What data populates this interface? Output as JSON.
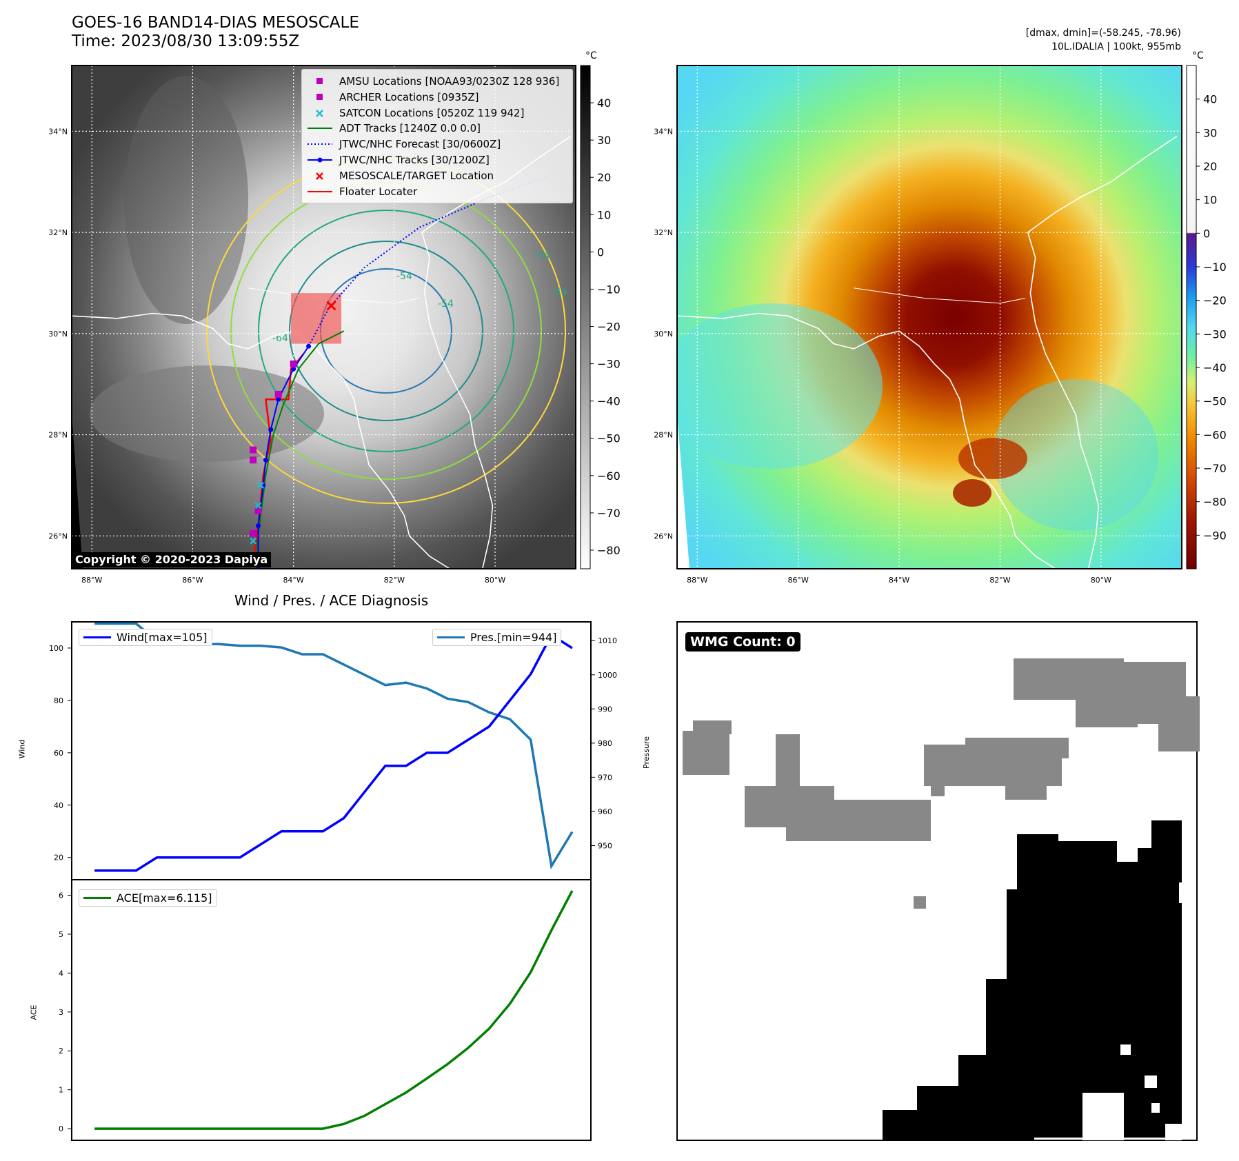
{
  "header": {
    "title_line1": "GOES-16 BAND14-DIAS MESOSCALE",
    "title_line2": "Time: 2023/08/30 13:09:55Z",
    "dmax_line": "[dmax, dmin]=(-58.245, -78.96)",
    "storm_line": "10L.IDALIA | 100kt, 955mb"
  },
  "map": {
    "lat_ticks": [
      "34°N",
      "32°N",
      "30°N",
      "28°N",
      "26°N"
    ],
    "lon_ticks": [
      "88°W",
      "86°W",
      "84°W",
      "82°W",
      "80°W"
    ],
    "lat_values": [
      34,
      32,
      30,
      28,
      26
    ],
    "lon_values": [
      -88,
      -86,
      -84,
      -82,
      -80
    ],
    "extent": {
      "lon_min": -88.4,
      "lon_max": -78.4,
      "lat_min": 25.35,
      "lat_max": 35.3
    },
    "copyright": "Copyright © 2020-2023 Dapiya",
    "contour_labels": [
      "-64",
      "-54",
      "-54",
      "-54",
      "-54"
    ]
  },
  "colorbar_left": {
    "unit": "°C",
    "ticks": [
      "40",
      "30",
      "20",
      "10",
      "0",
      "−10",
      "−20",
      "−30",
      "−40",
      "−50",
      "−60",
      "−70",
      "−80"
    ],
    "values": [
      40,
      30,
      20,
      10,
      0,
      -10,
      -20,
      -30,
      -40,
      -50,
      -60,
      -70,
      -80
    ],
    "range": [
      -85,
      50
    ]
  },
  "colorbar_right": {
    "unit": "°C",
    "ticks": [
      "40",
      "30",
      "20",
      "10",
      "0",
      "−10",
      "−20",
      "−30",
      "−40",
      "−50",
      "−60",
      "−70",
      "−80",
      "−90"
    ],
    "values": [
      40,
      30,
      20,
      10,
      0,
      -10,
      -20,
      -30,
      -40,
      -50,
      -60,
      -70,
      -80,
      -90
    ],
    "range": [
      -100,
      50
    ]
  },
  "legend": [
    {
      "label": "AMSU Locations [NOAA93/0230Z 128 936]",
      "marker": "square",
      "color": "#bf00bf"
    },
    {
      "label": "ARCHER Locations [0935Z]",
      "marker": "square",
      "color": "#bf00bf"
    },
    {
      "label": "SATCON Locations [0520Z 119 942]",
      "marker": "x",
      "color": "#17becf"
    },
    {
      "label": "ADT Tracks [1240Z 0.0 0.0]",
      "marker": "line",
      "color": "#008000"
    },
    {
      "label": "JTWC/NHC Forecast [30/0600Z]",
      "marker": "dotted",
      "color": "#0000ff"
    },
    {
      "label": "JTWC/NHC Tracks [30/1200Z]",
      "marker": "dotline",
      "color": "#0000ff"
    },
    {
      "label": "MESOSCALE/TARGET Location",
      "marker": "x",
      "color": "#ff0000"
    },
    {
      "label": "Floater Locater",
      "marker": "line",
      "color": "#ff0000"
    }
  ],
  "tracks": {
    "jtwc_track": [
      [
        -84.7,
        25.4
      ],
      [
        -84.7,
        26.2
      ],
      [
        -84.6,
        27.0
      ],
      [
        -84.55,
        27.5
      ],
      [
        -84.45,
        28.1
      ],
      [
        -84.3,
        28.7
      ],
      [
        -84.0,
        29.3
      ],
      [
        -83.7,
        29.75
      ]
    ],
    "jtwc_forecast": [
      [
        -83.7,
        29.75
      ],
      [
        -83.3,
        30.5
      ],
      [
        -82.6,
        31.3
      ],
      [
        -81.5,
        32.1
      ],
      [
        -80.1,
        32.7
      ],
      [
        -78.7,
        33.2
      ]
    ],
    "adt_track": [
      [
        -84.75,
        25.6
      ],
      [
        -84.65,
        26.4
      ],
      [
        -84.55,
        27.2
      ],
      [
        -84.4,
        28.0
      ],
      [
        -84.2,
        28.6
      ],
      [
        -83.9,
        29.3
      ],
      [
        -83.5,
        29.8
      ],
      [
        -83.0,
        30.05
      ]
    ],
    "floater": [
      [
        -84.8,
        25.5
      ],
      [
        -84.7,
        26.2
      ],
      [
        -84.6,
        27.2
      ],
      [
        -84.45,
        27.9
      ],
      [
        -84.55,
        28.7
      ],
      [
        -84.1,
        28.7
      ],
      [
        -84.05,
        29.3
      ],
      [
        -83.8,
        29.6
      ]
    ],
    "amsu": [
      [
        -84.8,
        27.7
      ],
      [
        -84.8,
        27.5
      ],
      [
        -84.7,
        26.5
      ],
      [
        -84.8,
        26.05
      ],
      [
        -84.3,
        28.8
      ]
    ],
    "archer": [
      [
        -84.0,
        29.4
      ]
    ],
    "satcon": [
      [
        -84.65,
        27.0
      ],
      [
        -84.7,
        26.6
      ],
      [
        -84.8,
        25.9
      ]
    ],
    "target": [
      [
        -83.25,
        30.55
      ]
    ],
    "target_box": {
      "lon_min": -84.05,
      "lon_max": -83.05,
      "lat_min": 29.8,
      "lat_max": 30.8
    }
  },
  "wind_pres": {
    "title": "Wind / Pres. / ACE Diagnosis",
    "wind_label": "Wind",
    "pres_label": "Pressure",
    "wind_legend": "Wind[max=105]",
    "pres_legend": "Pres.[min=944]",
    "wind_ticks": [
      "100",
      "80",
      "60",
      "40",
      "20"
    ],
    "wind_tick_values": [
      100,
      80,
      60,
      40,
      20
    ],
    "pres_ticks": [
      "1010",
      "1000",
      "990",
      "980",
      "970",
      "960",
      "950"
    ],
    "pres_tick_values": [
      1010,
      1000,
      990,
      980,
      970,
      960,
      950
    ],
    "wind_range": [
      11.5,
      110
    ],
    "pres_range": [
      940,
      1015.5
    ],
    "wind_color": "#0000ff",
    "pres_color": "#1f77b4",
    "x": [
      0,
      1,
      2,
      3,
      4,
      5,
      6,
      7,
      8,
      9,
      10,
      11,
      12,
      13,
      14,
      15,
      16,
      17,
      18,
      19,
      20,
      21,
      22,
      23
    ],
    "wind": [
      15,
      15,
      15,
      20,
      20,
      20,
      20,
      20,
      25,
      30,
      30,
      30,
      35,
      45,
      55,
      55,
      60,
      60,
      65,
      70,
      80,
      90,
      105,
      100
    ],
    "pres": [
      1015,
      1015,
      1015,
      1010,
      1009.5,
      1009,
      1009,
      1008.5,
      1008.5,
      1008,
      1006,
      1006,
      1003,
      1000,
      997,
      997.7,
      996,
      993,
      992,
      989,
      987,
      981,
      944,
      954
    ]
  },
  "ace": {
    "label": "ACE",
    "legend": "ACE[max=6.115]",
    "ticks": [
      "6",
      "5",
      "4",
      "3",
      "2",
      "1",
      "0"
    ],
    "tick_values": [
      6,
      5,
      4,
      3,
      2,
      1,
      0
    ],
    "range": [
      -0.3,
      6.4
    ],
    "color": "#008000",
    "x": [
      0,
      1,
      2,
      3,
      4,
      5,
      6,
      7,
      8,
      9,
      10,
      11,
      12,
      13,
      14,
      15,
      16,
      17,
      18,
      19,
      20,
      21,
      22,
      23
    ],
    "values": [
      0,
      0,
      0,
      0,
      0,
      0,
      0,
      0,
      0,
      0,
      0,
      0,
      0.12,
      0.33,
      0.63,
      0.93,
      1.29,
      1.66,
      2.08,
      2.57,
      3.21,
      4.02,
      5.1,
      6.115
    ]
  },
  "wmg": {
    "badge": "WMG Count: 0"
  }
}
